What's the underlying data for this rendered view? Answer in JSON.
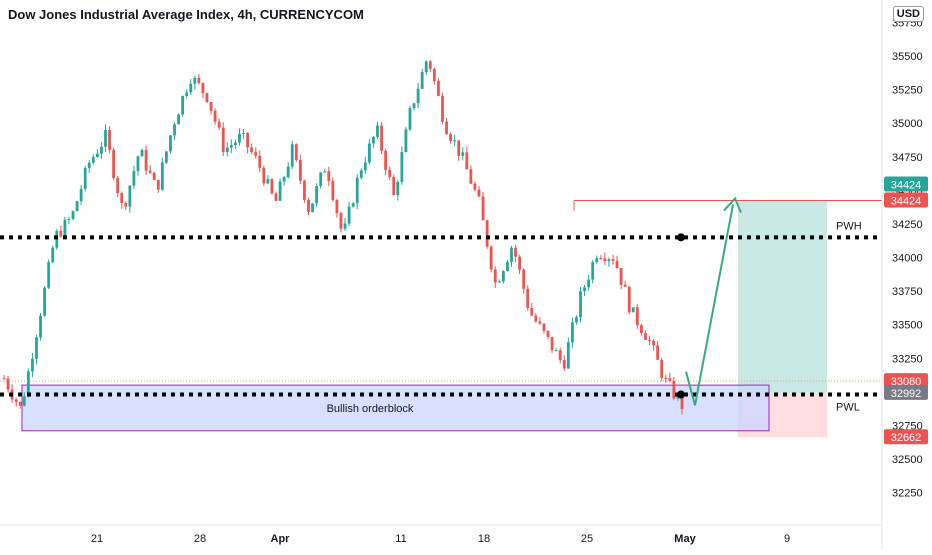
{
  "title": "Dow Jones Industrial Average Index, 4h, CURRENCYCOM",
  "currency_button": "USD",
  "colors": {
    "up": "#26a69a",
    "down": "#ef5350",
    "pwh_pwl": "#000000",
    "orderblock_fill": "#c9d6ff",
    "orderblock_border": "#9c27b0",
    "target_zone": "#b2dfdb",
    "stop_zone": "#ffcdd2",
    "arrow": "#3aa982",
    "target_line": "#ef5350"
  },
  "chart_data": {
    "type": "candlestick",
    "title": "Dow Jones Industrial Average Index, 4h, CURRENCYCOM",
    "y_ticks": [
      32250,
      32500,
      32750,
      33000,
      33250,
      33500,
      33750,
      34000,
      34250,
      34500,
      34750,
      35000,
      35250,
      35500,
      35750
    ],
    "ylim": [
      32030,
      35800
    ],
    "x_ticks": [
      "21",
      "28",
      "Apr",
      "11",
      "18",
      "25",
      "May",
      "9"
    ],
    "price_labels": [
      {
        "value": 34424,
        "text": "34424",
        "color": "#26a69a"
      },
      {
        "value": 34424,
        "text": "34424",
        "color": "#ef5350"
      },
      {
        "value": 33080,
        "text": "33080",
        "color": "#ef5350"
      },
      {
        "value": 32992,
        "text": "32992",
        "color": "#787b86"
      },
      {
        "value": 32662,
        "text": "32662",
        "color": "#ef5350"
      }
    ],
    "levels": [
      {
        "name": "PWH",
        "value": 34150
      },
      {
        "name": "PWL",
        "value": 32980
      }
    ],
    "orderblock": {
      "label": "Bullish orderblock",
      "top": 33050,
      "bottom": 32710
    },
    "trade_setup": {
      "entry": 32992,
      "target": 34424,
      "stop": 32662
    },
    "price_path": [
      33100,
      32870,
      33500,
      34150,
      34300,
      34700,
      34900,
      34350,
      34800,
      34500,
      35000,
      35350,
      35200,
      34800,
      34900,
      34700,
      34400,
      34800,
      34350,
      34700,
      34150,
      34650,
      34950,
      34450,
      35100,
      35500,
      35000,
      34750,
      34420,
      33800,
      34100,
      33600,
      33400,
      33200,
      33700,
      34050,
      34000,
      33600,
      33400,
      33080,
      32900
    ]
  }
}
